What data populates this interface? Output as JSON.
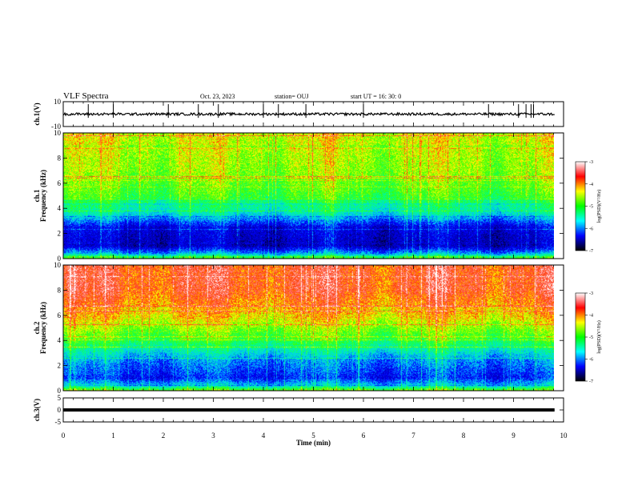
{
  "header": {
    "title": "VLF Spectra",
    "date": "Oct. 23, 2023",
    "station": "station= OUJ",
    "start": "start  UT =   16: 30: 0"
  },
  "colorbar": {
    "label": "log(PSD)(V²/Hz)",
    "ticks": [
      "-3",
      "-4",
      "-5",
      "-6",
      "-7"
    ],
    "range": [
      -7,
      -3
    ],
    "colors": [
      "#ffffff",
      "#ff0000",
      "#ffff00",
      "#00ff00",
      "#00ffff",
      "#0000ff",
      "#000000"
    ]
  },
  "chart_data": [
    {
      "type": "line",
      "name": "ch1-waveform",
      "ylabel": "ch.1(V)",
      "ylim": [
        -10,
        10
      ],
      "yticks": [
        "10",
        "-10"
      ],
      "xlim": [
        0,
        10
      ],
      "trace_level": 0,
      "trace_amplitude": 1,
      "spikes_at_min": [
        0.5,
        1.0,
        2.1,
        2.7,
        3.1,
        4.0,
        4.3,
        4.85,
        6.0,
        8.5,
        9.1,
        9.25,
        9.35,
        9.4
      ]
    },
    {
      "type": "heatmap",
      "name": "ch1-spectrogram",
      "ylabel": "ch.1\nFrequency (kHz)",
      "ylabel_lines": [
        "ch.1",
        "Frequency (kHz)"
      ],
      "ylim": [
        0,
        10
      ],
      "yticks": [
        "0",
        "2",
        "4",
        "6",
        "8",
        "10"
      ],
      "xlim": [
        0,
        10
      ],
      "value": "log(PSD)",
      "band_profile_khz": [
        {
          "f": 0.0,
          "v": -4.6
        },
        {
          "f": 0.4,
          "v": -5.6
        },
        {
          "f": 1.0,
          "v": -6.4
        },
        {
          "f": 2.5,
          "v": -6.2
        },
        {
          "f": 3.5,
          "v": -5.3
        },
        {
          "f": 5.0,
          "v": -4.6
        },
        {
          "f": 7.0,
          "v": -4.3
        },
        {
          "f": 10.0,
          "v": -4.1
        }
      ]
    },
    {
      "type": "heatmap",
      "name": "ch2-spectrogram",
      "ylabel": "ch.2\nFrequency (kHz)",
      "ylabel_lines": [
        "ch.2",
        "Frequency (kHz)"
      ],
      "ylim": [
        0,
        10
      ],
      "yticks": [
        "0",
        "2",
        "4",
        "6",
        "8",
        "10"
      ],
      "xlim": [
        0,
        10
      ],
      "value": "log(PSD)",
      "band_profile_khz": [
        {
          "f": 0.0,
          "v": -4.4
        },
        {
          "f": 0.4,
          "v": -5.4
        },
        {
          "f": 1.0,
          "v": -6.0
        },
        {
          "f": 2.5,
          "v": -5.6
        },
        {
          "f": 4.0,
          "v": -4.7
        },
        {
          "f": 6.0,
          "v": -3.9
        },
        {
          "f": 8.0,
          "v": -3.5
        },
        {
          "f": 10.0,
          "v": -3.5
        }
      ]
    },
    {
      "type": "line",
      "name": "ch3-waveform",
      "ylabel": "ch.3(V)",
      "ylim": [
        -5,
        5
      ],
      "yticks": [
        "5",
        "0",
        "-5"
      ],
      "xlim": [
        0,
        10
      ],
      "trace_level": 0,
      "xlabel": "Time (min)",
      "xticks": [
        "0",
        "1",
        "2",
        "3",
        "4",
        "5",
        "6",
        "7",
        "8",
        "9",
        "10"
      ]
    }
  ]
}
